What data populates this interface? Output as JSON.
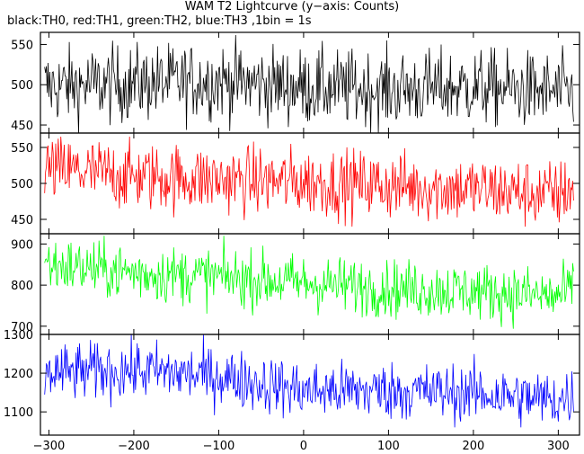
{
  "chart_data": {
    "type": "line",
    "title": "WAM T2 Lightcurve (y−axis: Counts)",
    "subtitle": "black:TH0, red:TH1, green:TH2, blue:TH3 ,1bin = 1s",
    "x_range": [
      -310,
      325
    ],
    "x_ticks": [
      -300,
      -200,
      -100,
      0,
      100,
      200,
      300
    ],
    "panels": [
      {
        "series": "TH0",
        "color": "#000000",
        "ylim": [
          440,
          565
        ],
        "y_ticks": [
          450,
          500,
          550
        ],
        "trend": [
          [
            -300,
            498
          ],
          [
            -100,
            505
          ],
          [
            0,
            497
          ],
          [
            100,
            494
          ],
          [
            200,
            497
          ],
          [
            315,
            490
          ]
        ],
        "noise": 24,
        "min": 440,
        "max": 565
      },
      {
        "series": "TH1",
        "color": "#ff0000",
        "ylim": [
          430,
          570
        ],
        "y_ticks": [
          450,
          500,
          550
        ],
        "trend": [
          [
            -300,
            520
          ],
          [
            -200,
            510
          ],
          [
            -100,
            505
          ],
          [
            0,
            502
          ],
          [
            100,
            497
          ],
          [
            200,
            492
          ],
          [
            300,
            484
          ],
          [
            315,
            495
          ]
        ],
        "noise": 24,
        "min": 435,
        "max": 565
      },
      {
        "series": "TH2",
        "color": "#00ff00",
        "ylim": [
          680,
          925
        ],
        "y_ticks": [
          700,
          800,
          900
        ],
        "trend": [
          [
            -300,
            850
          ],
          [
            -200,
            830
          ],
          [
            -100,
            820
          ],
          [
            0,
            805
          ],
          [
            100,
            792
          ],
          [
            200,
            785
          ],
          [
            300,
            772
          ],
          [
            315,
            790
          ]
        ],
        "noise": 35,
        "min": 690,
        "max": 920
      },
      {
        "series": "TH3",
        "color": "#0000ff",
        "ylim": [
          1040,
          1300
        ],
        "y_ticks": [
          1100,
          1200,
          1300
        ],
        "trend": [
          [
            -300,
            1200
          ],
          [
            -200,
            1208
          ],
          [
            -100,
            1192
          ],
          [
            0,
            1155
          ],
          [
            100,
            1155
          ],
          [
            200,
            1148
          ],
          [
            300,
            1130
          ],
          [
            315,
            1140
          ]
        ],
        "noise": 38,
        "min": 1060,
        "max": 1300
      }
    ]
  }
}
